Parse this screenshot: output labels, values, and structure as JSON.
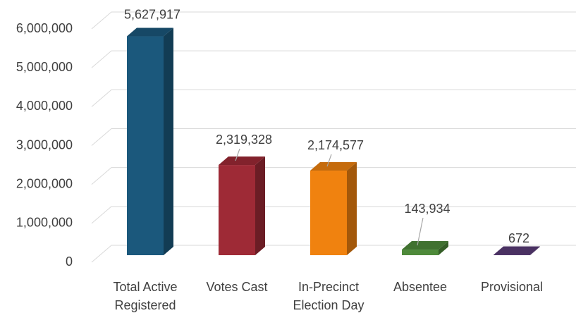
{
  "chart_data": {
    "type": "bar3d",
    "categories": [
      [
        "Total Active",
        "Registered"
      ],
      [
        "Votes Cast"
      ],
      [
        "In-Precinct",
        "Election Day"
      ],
      [
        "Absentee"
      ],
      [
        "Provisional"
      ]
    ],
    "values": [
      5627917,
      2319328,
      2174577,
      143934,
      672
    ],
    "value_labels": [
      "5,627,917",
      "2,319,328",
      "2,174,577",
      "143,934",
      "672"
    ],
    "colors": [
      "#1b587c",
      "#9e2a36",
      "#f0820f",
      "#4e8a3a",
      "#5a3c78"
    ],
    "ylim": [
      0,
      6000000
    ],
    "yticks": [
      0,
      {
        "value": 1000000,
        "label": "1,000,000"
      },
      {
        "value": 2000000,
        "label": "2,000,000"
      },
      {
        "value": 3000000,
        "label": "3,000,000"
      },
      {
        "value": 4000000,
        "label": "4,000,000"
      },
      {
        "value": 5000000,
        "label": "5,000,000"
      },
      {
        "value": 6000000,
        "label": "6,000,000"
      }
    ],
    "grid": true
  }
}
